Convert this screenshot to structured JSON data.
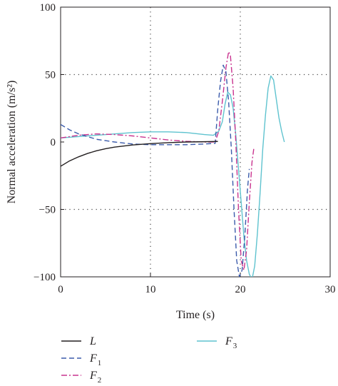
{
  "chart_data": {
    "type": "line",
    "title": "",
    "xlabel": "Time (s)",
    "ylabel": "Normal acceleration (m/s²)",
    "xlim": [
      0,
      30
    ],
    "ylim": [
      -100,
      100
    ],
    "xticks": [
      0,
      10,
      20,
      30
    ],
    "yticks": [
      -100,
      -50,
      0,
      50,
      100
    ],
    "xtick_labels": [
      "0",
      "10",
      "20",
      "30"
    ],
    "ytick_labels": [
      "−100",
      "−50",
      "0",
      "50",
      "100"
    ],
    "grid": "dotted, at x=10,20 and y=-50,50",
    "legend_placement": "below plot",
    "series": [
      {
        "name": "L",
        "label_base": "L",
        "label_sub": "",
        "color": "#231f20",
        "dash": "solid",
        "x": [
          0,
          1,
          2,
          3,
          4,
          5,
          6,
          8,
          10,
          12,
          14,
          16,
          17.5
        ],
        "y": [
          -18,
          -14,
          -11,
          -8.5,
          -6.5,
          -5,
          -3.8,
          -2.2,
          -1.2,
          -0.5,
          0,
          0.2,
          0.4
        ]
      },
      {
        "name": "F1",
        "label_base": "F",
        "label_sub": "1",
        "color": "#3b5bab",
        "dash": "7,4",
        "x": [
          0,
          1,
          2,
          3,
          4,
          5,
          6,
          8,
          10,
          12,
          14,
          16,
          17.2,
          17.5,
          17.8,
          18.1,
          18.4,
          18.7,
          19.0,
          19.3,
          19.6,
          19.9,
          20.2,
          20.5,
          20.8,
          21.0
        ],
        "y": [
          13,
          9,
          6,
          4,
          2,
          1,
          0,
          -1.5,
          -2,
          -2,
          -2,
          -1.5,
          -1,
          25,
          45,
          57,
          52,
          30,
          -5,
          -50,
          -88,
          -100,
          -95,
          -70,
          -35,
          -20
        ]
      },
      {
        "name": "F2",
        "label_base": "F",
        "label_sub": "2",
        "color": "#c9338f",
        "dash": "8,3,2,3",
        "x": [
          0,
          2,
          4,
          6,
          8,
          10,
          12,
          14,
          16,
          17.2,
          17.6,
          18.0,
          18.4,
          18.7,
          18.9,
          19.2,
          19.5,
          19.8,
          20.1,
          20.4,
          20.7,
          21.0,
          21.3,
          21.5
        ],
        "y": [
          3,
          5,
          6,
          5.5,
          4.5,
          3,
          1.5,
          0.5,
          0,
          0,
          8,
          30,
          55,
          67,
          64,
          40,
          0,
          -50,
          -88,
          -95,
          -80,
          -45,
          -15,
          -5
        ]
      },
      {
        "name": "F3",
        "label_base": "F",
        "label_sub": "3",
        "color": "#5fc3cf",
        "dash": "solid",
        "x": [
          0,
          2,
          4,
          6,
          8,
          10,
          12,
          14,
          16,
          17,
          17.6,
          18.0,
          18.3,
          18.6,
          18.9,
          19.2,
          19.5,
          19.8,
          20.1,
          20.4,
          20.7,
          21.0,
          21.3,
          21.6,
          21.9,
          22.2,
          22.5,
          22.8,
          23.1,
          23.4,
          23.7,
          24.0,
          24.3,
          24.6,
          24.9
        ],
        "y": [
          3,
          4,
          5,
          6,
          7,
          7.5,
          7.5,
          7,
          5.5,
          5,
          8,
          15,
          28,
          37,
          35,
          25,
          5,
          -20,
          -45,
          -70,
          -88,
          -98,
          -102,
          -92,
          -68,
          -38,
          -5,
          20,
          40,
          49,
          46,
          32,
          18,
          8,
          0
        ]
      }
    ]
  }
}
